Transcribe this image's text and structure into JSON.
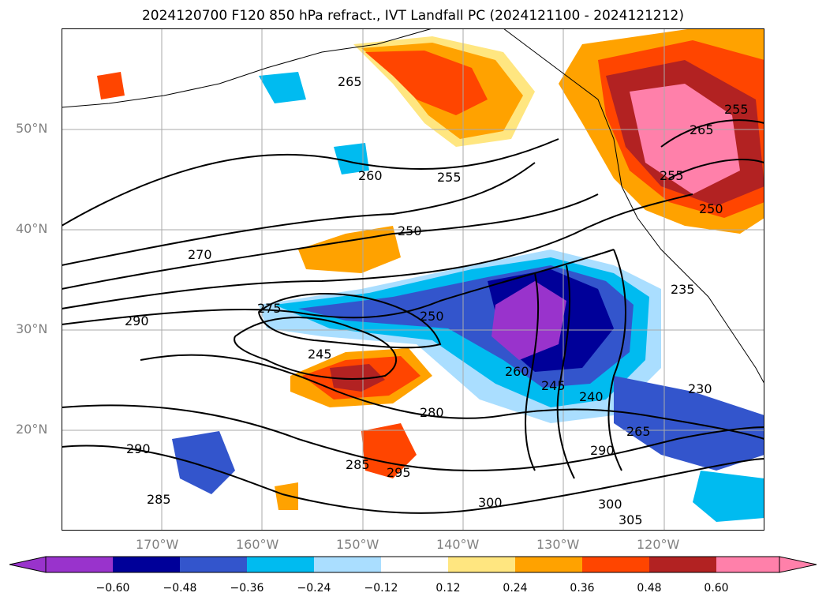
{
  "title": "2024120700 F120 850 hPa refract., IVT Landfall PC (2024121100 - 2024121212)",
  "map": {
    "lon_labels": [
      "170°W",
      "160°W",
      "150°W",
      "140°W",
      "130°W",
      "120°W"
    ],
    "lat_labels": [
      "50°N",
      "40°N",
      "30°N",
      "20°N"
    ],
    "colors": {
      "neg_extreme": "#9933cc",
      "neg_060": "#000099",
      "neg_048": "#3355cc",
      "neg_036": "#00bbf0",
      "neg_024": "#aadeff",
      "zero": "#ffffff",
      "pos_012": "#ffe680",
      "pos_024": "#ffa200",
      "pos_036": "#ff4500",
      "pos_048": "#b22222",
      "pos_060": "#ff80aa",
      "contour": "#000000",
      "grid": "#aaaaaa"
    },
    "contour_labels": [
      "265",
      "260",
      "255",
      "250",
      "270",
      "290",
      "275",
      "250",
      "245",
      "260",
      "245",
      "240",
      "265",
      "290",
      "280",
      "285",
      "295",
      "290",
      "285",
      "300",
      "300",
      "305",
      "265",
      "255",
      "255",
      "250",
      "230",
      "235"
    ]
  },
  "colorbar": {
    "ticks": [
      "−0.60",
      "−0.48",
      "−0.36",
      "−0.24",
      "−0.12",
      "0.12",
      "0.24",
      "0.36",
      "0.48",
      "0.60"
    ]
  }
}
